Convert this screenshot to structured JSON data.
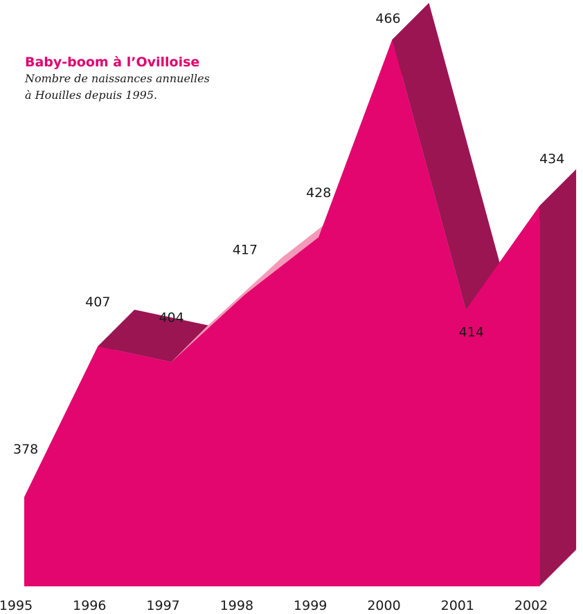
{
  "header": {
    "title": "Baby-boom à l’Ovilloise",
    "subtitle_line1": "Nombre de naissances annuelles",
    "subtitle_line2": "à Houilles depuis 1995."
  },
  "colors": {
    "front": "#e3066e",
    "side": "#9b1553",
    "light": "#f39ab9"
  },
  "chart_data": {
    "type": "area",
    "title": "Baby-boom à l’Ovilloise",
    "subtitle": "Nombre de naissances annuelles à Houilles depuis 1995.",
    "categories": [
      "1995",
      "1996",
      "1997",
      "1998",
      "1999",
      "2000",
      "2001",
      "2002"
    ],
    "values": [
      378,
      407,
      404,
      417,
      428,
      466,
      414,
      434
    ],
    "xlabel": "",
    "ylabel": "",
    "grid": false,
    "legend": "none",
    "style": "3d"
  }
}
